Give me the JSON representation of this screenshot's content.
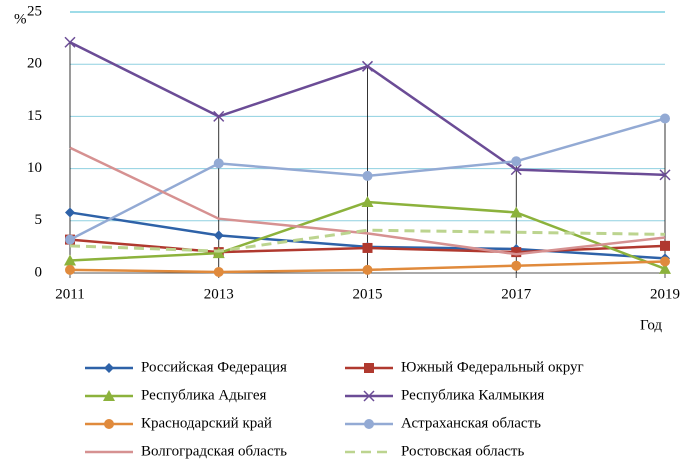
{
  "chart_data": {
    "type": "line",
    "y_label": "%",
    "x_label": "Год",
    "categories": [
      "2011",
      "2013",
      "2015",
      "2017",
      "2019"
    ],
    "ylim": [
      0,
      25
    ],
    "yticks": [
      0,
      5,
      10,
      15,
      20,
      25
    ],
    "grid": true,
    "series": [
      {
        "name": "Российская Федерация",
        "color": "#2e62a8",
        "marker": "diamond",
        "values": [
          5.8,
          3.6,
          2.5,
          2.3,
          1.4
        ]
      },
      {
        "name": "Южный Федеральный округ",
        "color": "#b0392f",
        "marker": "square",
        "values": [
          3.2,
          2.0,
          2.4,
          2.0,
          2.6
        ]
      },
      {
        "name": "Республика Адыгея",
        "color": "#8cb23c",
        "marker": "triangle",
        "values": [
          1.2,
          1.9,
          6.8,
          5.8,
          0.4
        ]
      },
      {
        "name": "Республика Калмыкия",
        "color": "#6b4c96",
        "marker": "x",
        "values": [
          22.1,
          15.0,
          19.8,
          9.9,
          9.4
        ]
      },
      {
        "name": "Краснодарский край",
        "color": "#e08a3c",
        "marker": "circle",
        "values": [
          0.3,
          0.1,
          0.3,
          0.7,
          1.1
        ]
      },
      {
        "name": "Астраханская область",
        "color": "#93aad4",
        "marker": "circle",
        "values": [
          3.2,
          10.5,
          9.3,
          10.7,
          14.8
        ]
      },
      {
        "name": "Волгоградская область",
        "color": "#d69191",
        "marker": "none",
        "values": [
          12.0,
          5.2,
          3.8,
          1.8,
          3.4
        ]
      },
      {
        "name": "Ростовская область",
        "color": "#bcd48f",
        "marker": "dash",
        "values": [
          2.6,
          2.1,
          4.1,
          3.9,
          3.7
        ]
      }
    ]
  }
}
